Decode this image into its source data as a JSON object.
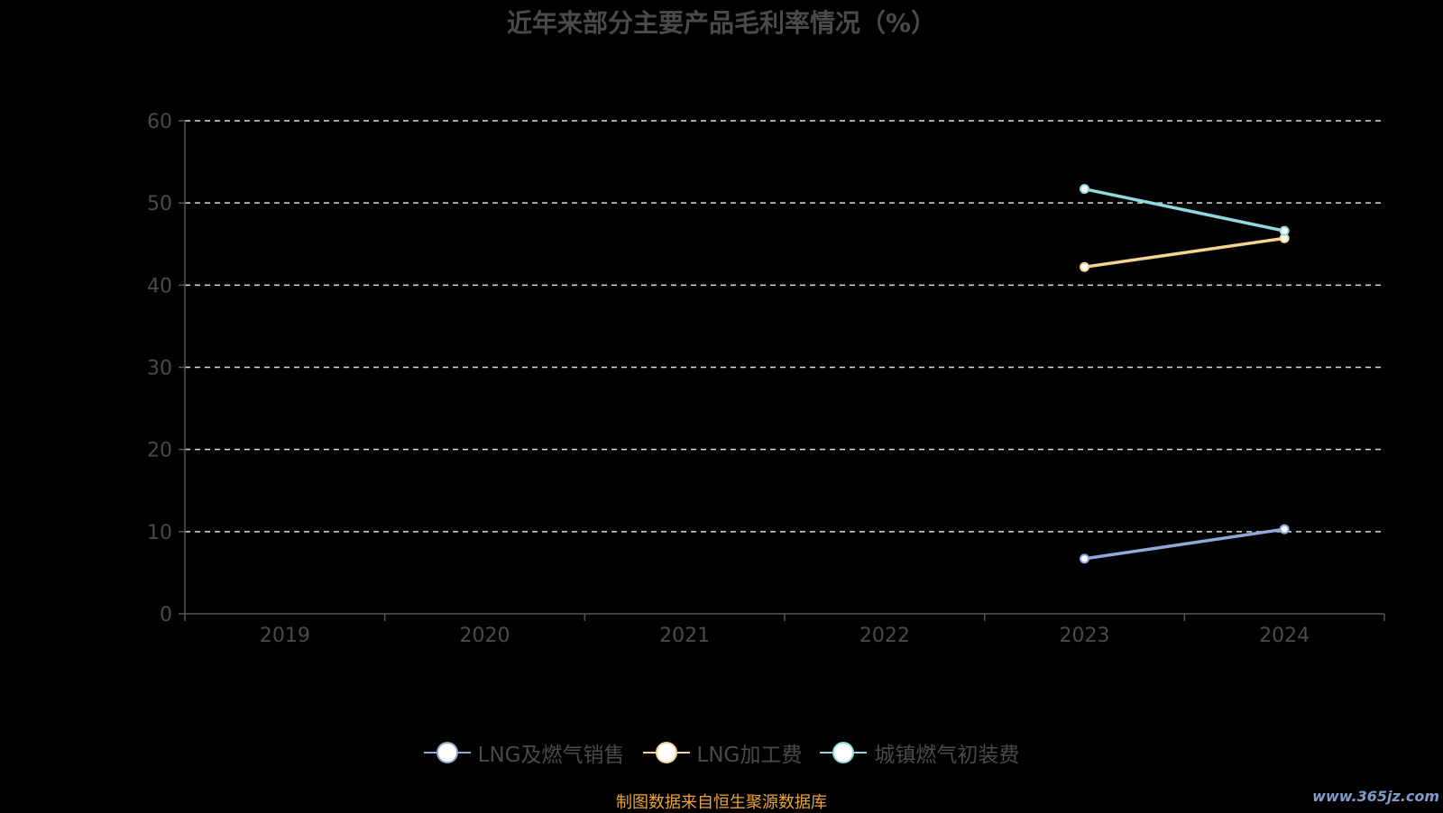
{
  "chart_data": {
    "type": "line",
    "title": "近年来部分主要产品毛利率情况（%）",
    "categories": [
      "2019",
      "2020",
      "2021",
      "2022",
      "2023",
      "2024"
    ],
    "ylim": [
      0,
      60
    ],
    "yticks": [
      "0",
      "10",
      "20",
      "30",
      "40",
      "50",
      "60"
    ],
    "grid": true,
    "legend_position": "bottom",
    "series": [
      {
        "name": "LNG及燃气销售",
        "color": "#8fa8d8",
        "values": [
          null,
          null,
          null,
          null,
          6.7,
          10.3
        ]
      },
      {
        "name": "LNG加工费",
        "color": "#f5d493",
        "values": [
          null,
          null,
          null,
          null,
          42.2,
          45.7
        ]
      },
      {
        "name": "城镇燃气初装费",
        "color": "#8fd9dc",
        "values": [
          null,
          null,
          null,
          null,
          51.7,
          46.6
        ]
      }
    ]
  },
  "footer": {
    "source": "制图数据来自恒生聚源数据库",
    "watermark": "www.365jz.com"
  }
}
